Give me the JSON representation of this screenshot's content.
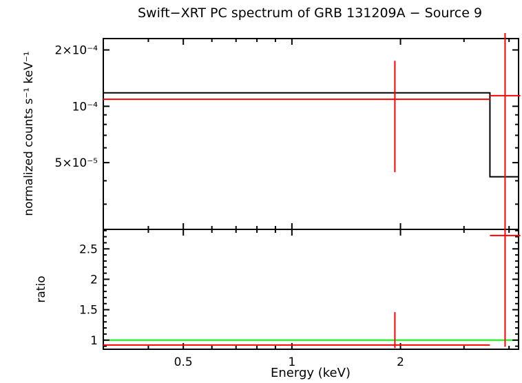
{
  "title": "Swift−XRT PC spectrum of GRB 131209A − Source 9",
  "xlabel": "Energy (keV)",
  "colors": {
    "model": "#000000",
    "data": "#ff0000",
    "reference": "#00ff00",
    "frame": "#000000",
    "background": "#ffffff"
  },
  "chart_data": [
    {
      "type": "step",
      "panel": "spectrum",
      "ylabel": "normalized counts s⁻¹ keV⁻¹",
      "xscale": "log",
      "yscale": "log",
      "xlim": [
        0.3,
        4.25
      ],
      "ylim": [
        2.2e-05,
        0.00023
      ],
      "grid": false,
      "xticks": [
        {
          "value": 0.5,
          "label": "0.5"
        },
        {
          "value": 1,
          "label": "1"
        },
        {
          "value": 2,
          "label": "2"
        }
      ],
      "xminorticks": [
        0.4,
        0.6,
        0.7,
        0.8,
        0.9,
        3,
        4
      ],
      "yticks": [
        {
          "value": 0.0002,
          "label": "2×10⁻⁴"
        },
        {
          "value": 0.0001,
          "label": "10⁻⁴"
        },
        {
          "value": 5e-05,
          "label": "5×10⁻⁵"
        }
      ],
      "yminorticks": [
        3e-05,
        4e-05,
        6e-05,
        7e-05,
        8e-05,
        9e-05
      ],
      "model_histogram": [
        {
          "e_min": 0.3,
          "e_max": 3.54,
          "value": 0.000118
        },
        {
          "e_min": 3.54,
          "e_max": 4.25,
          "value": 4.2e-05
        }
      ],
      "data_points": [
        {
          "e_min": 0.3,
          "e_max": 3.54,
          "e_center": 1.93,
          "value": 0.000109,
          "err_low": 4.45e-05,
          "err_high": 0.000175
        },
        {
          "e_min": 3.54,
          "e_max": 4.3,
          "e_center": 3.9,
          "value": 0.000114,
          "err_low": null,
          "err_high": null
        }
      ]
    },
    {
      "type": "scatter",
      "panel": "ratio",
      "ylabel": "ratio",
      "xscale": "log",
      "yscale": "linear",
      "xlim": [
        0.3,
        4.25
      ],
      "ylim": [
        0.85,
        2.82
      ],
      "grid": false,
      "reference_line": 1.0,
      "yticks": [
        {
          "value": 1,
          "label": "1"
        },
        {
          "value": 1.5,
          "label": "1.5"
        },
        {
          "value": 2,
          "label": "2"
        },
        {
          "value": 2.5,
          "label": "2.5"
        }
      ],
      "yminorticks": [
        0.9,
        1.1,
        1.2,
        1.3,
        1.4,
        1.6,
        1.7,
        1.8,
        1.9,
        2.1,
        2.2,
        2.3,
        2.4,
        2.6,
        2.7,
        2.8
      ],
      "data_points": [
        {
          "e_min": 0.3,
          "e_max": 3.54,
          "e_center": 1.93,
          "value": 0.92,
          "err_low": 0.87,
          "err_high": 1.46
        },
        {
          "e_min": 3.54,
          "e_max": 4.3,
          "e_center": 3.9,
          "value": 2.72,
          "err_low": 0.89,
          "err_high": null
        }
      ]
    }
  ]
}
